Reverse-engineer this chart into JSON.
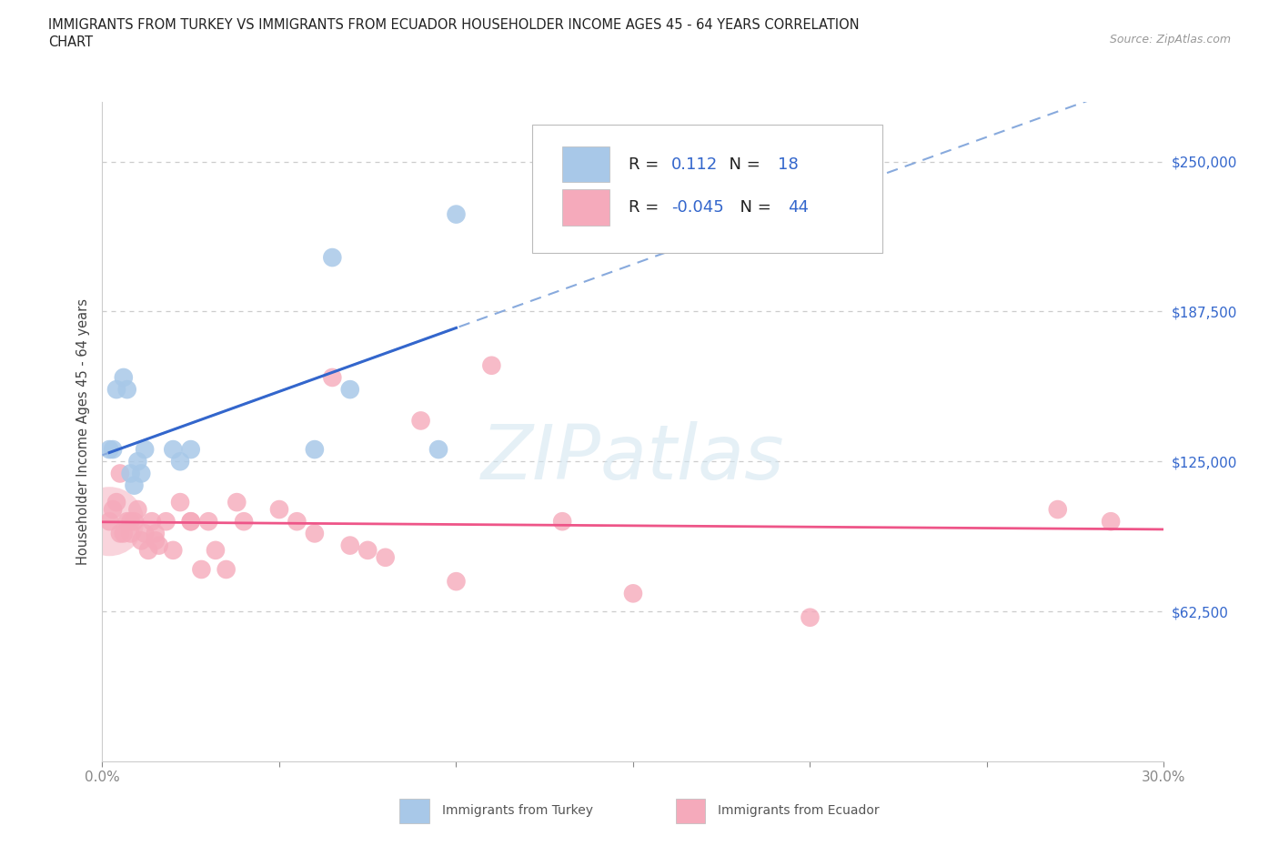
{
  "title_line1": "IMMIGRANTS FROM TURKEY VS IMMIGRANTS FROM ECUADOR HOUSEHOLDER INCOME AGES 45 - 64 YEARS CORRELATION",
  "title_line2": "CHART",
  "source": "Source: ZipAtlas.com",
  "ylabel": "Householder Income Ages 45 - 64 years",
  "xlim": [
    0.0,
    0.3
  ],
  "ylim": [
    0,
    275000
  ],
  "xtick_vals": [
    0.0,
    0.05,
    0.1,
    0.15,
    0.2,
    0.25,
    0.3
  ],
  "xtick_labels": [
    "0.0%",
    "",
    "",
    "",
    "",
    "",
    "30.0%"
  ],
  "ytick_vals": [
    0,
    62500,
    125000,
    187500,
    250000
  ],
  "ytick_labels": [
    "",
    "$62,500",
    "$125,000",
    "$187,500",
    "$250,000"
  ],
  "grid_color": "#cccccc",
  "bg_color": "#ffffff",
  "turkey_fill": "#a8c8e8",
  "ecuador_fill": "#f5aabb",
  "turkey_line_solid": "#3366cc",
  "turkey_line_dashed": "#88aadd",
  "ecuador_line": "#ee5588",
  "r_turkey": "0.112",
  "n_turkey": "18",
  "r_ecuador": "-0.045",
  "n_ecuador": "44",
  "turkey_x": [
    0.002,
    0.004,
    0.006,
    0.007,
    0.008,
    0.009,
    0.01,
    0.011,
    0.012,
    0.02,
    0.022,
    0.025,
    0.06,
    0.065,
    0.07,
    0.095,
    0.1,
    0.003
  ],
  "turkey_y": [
    130000,
    155000,
    160000,
    155000,
    120000,
    115000,
    125000,
    120000,
    130000,
    130000,
    125000,
    130000,
    130000,
    210000,
    155000,
    130000,
    228000,
    130000
  ],
  "ecuador_x": [
    0.002,
    0.003,
    0.004,
    0.005,
    0.006,
    0.007,
    0.008,
    0.009,
    0.01,
    0.011,
    0.012,
    0.013,
    0.014,
    0.015,
    0.016,
    0.018,
    0.02,
    0.022,
    0.025,
    0.028,
    0.03,
    0.032,
    0.035,
    0.038,
    0.04,
    0.05,
    0.055,
    0.06,
    0.065,
    0.07,
    0.075,
    0.08,
    0.09,
    0.1,
    0.11,
    0.13,
    0.15,
    0.2,
    0.27,
    0.285,
    0.005,
    0.008,
    0.015,
    0.025
  ],
  "ecuador_y": [
    100000,
    105000,
    108000,
    95000,
    95000,
    100000,
    100000,
    100000,
    105000,
    92000,
    95000,
    88000,
    100000,
    95000,
    90000,
    100000,
    88000,
    108000,
    100000,
    80000,
    100000,
    88000,
    80000,
    108000,
    100000,
    105000,
    100000,
    95000,
    160000,
    90000,
    88000,
    85000,
    142000,
    75000,
    165000,
    100000,
    70000,
    60000,
    105000,
    100000,
    120000,
    95000,
    92000,
    100000
  ],
  "ecuador_big_x": [
    0.002
  ],
  "ecuador_big_y": [
    100000
  ],
  "ecuador_big_size": 3000,
  "watermark_text": "ZIPatlas",
  "legend_label1": "Immigrants from Turkey",
  "legend_label2": "Immigrants from Ecuador"
}
